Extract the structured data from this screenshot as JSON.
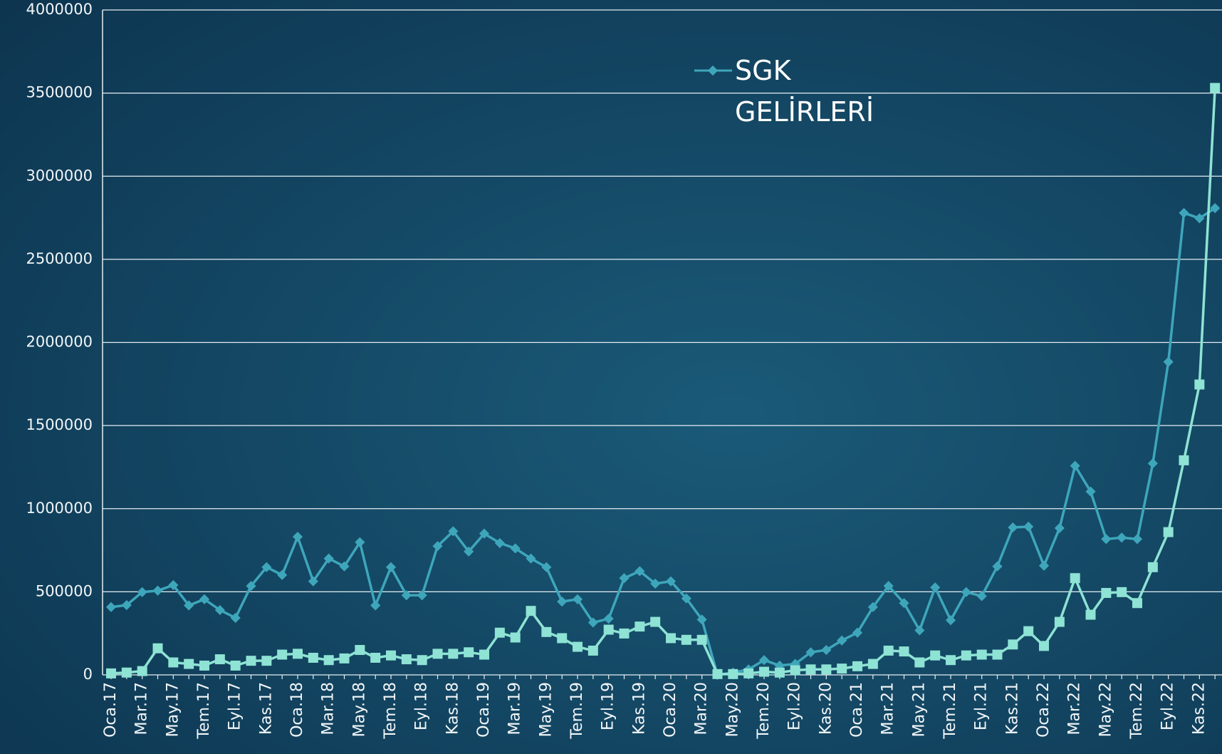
{
  "chart_data": {
    "type": "line",
    "categories": [
      "Oca.17",
      null,
      "Mar.17",
      null,
      "May.17",
      null,
      "Tem.17",
      null,
      "Eyl.17",
      null,
      "Kas.17",
      null,
      "Oca.18",
      null,
      "Mar.18",
      null,
      "May.18",
      null,
      "Tem.18",
      null,
      "Eyl.18",
      null,
      "Kas.18",
      null,
      "Oca.19",
      null,
      "Mar.19",
      null,
      "May.19",
      null,
      "Tem.19",
      null,
      "Eyl.19",
      null,
      "Kas.19",
      null,
      "Oca.20",
      null,
      "Mar.20",
      null,
      "May.20",
      null,
      "Tem.20",
      null,
      "Eyl.20",
      null,
      "Kas.20",
      null,
      "Oca.21",
      null,
      "Mar.21",
      null,
      "May.21",
      null,
      "Tem.21",
      null,
      "Eyl.21",
      null,
      "Kas.21",
      null,
      "Oca.22",
      null,
      "Mar.22",
      null,
      "May.22",
      null,
      "Tem.22",
      null,
      "Eyl.22",
      null,
      "Kas.22",
      null
    ],
    "series": [
      {
        "name": "SGK GELİRLERİ",
        "color": "#3ea6bb",
        "marker": "diamond",
        "values": [
          408000,
          420000,
          498000,
          507000,
          540000,
          418000,
          455000,
          390000,
          343000,
          535000,
          648000,
          601000,
          831000,
          563000,
          700000,
          653000,
          798000,
          418000,
          648000,
          479000,
          479000,
          775000,
          864000,
          742000,
          850000,
          793000,
          761000,
          700000,
          648000,
          441000,
          455000,
          315000,
          338000,
          582000,
          624000,
          549000,
          563000,
          460000,
          333000,
          0,
          14000,
          33000,
          89000,
          56000,
          66000,
          136000,
          150000,
          207000,
          254000,
          408000,
          535000,
          432000,
          268000,
          526000,
          329000,
          498000,
          474000,
          653000,
          887000,
          892000,
          657000,
          883000,
          1258000,
          1103000,
          817000,
          826000,
          817000,
          1272000,
          1883000,
          2779000,
          2747000,
          2808000
        ]
      },
      {
        "color": "#8ee3d4",
        "marker": "square",
        "values": [
          9000,
          14000,
          23000,
          160000,
          75000,
          66000,
          56000,
          94000,
          56000,
          85000,
          85000,
          122000,
          127000,
          103000,
          89000,
          99000,
          150000,
          103000,
          117000,
          94000,
          89000,
          127000,
          127000,
          136000,
          122000,
          254000,
          225000,
          385000,
          258000,
          221000,
          169000,
          146000,
          272000,
          249000,
          291000,
          319000,
          221000,
          211000,
          211000,
          5000,
          5000,
          9000,
          19000,
          14000,
          28000,
          33000,
          33000,
          38000,
          52000,
          66000,
          146000,
          141000,
          75000,
          117000,
          89000,
          117000,
          122000,
          122000,
          183000,
          263000,
          174000,
          319000,
          582000,
          362000,
          493000,
          498000,
          432000,
          648000,
          859000,
          1291000,
          1747000,
          3531000
        ]
      }
    ],
    "ylim": [
      0,
      4000000
    ],
    "yticks": [
      0,
      500000,
      1000000,
      1500000,
      2000000,
      2500000,
      3000000,
      3500000,
      4000000
    ],
    "grid": true
  }
}
